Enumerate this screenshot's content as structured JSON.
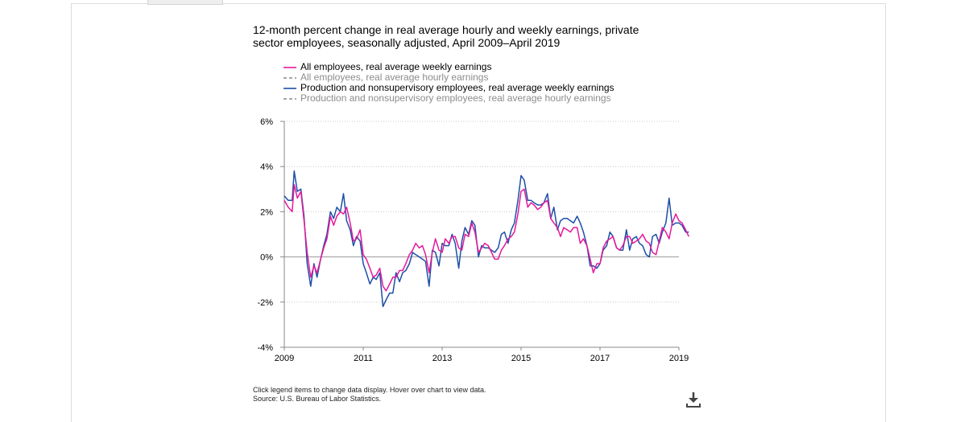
{
  "chart_data": {
    "type": "line",
    "title": "12-month percent change in real average hourly and weekly earnings, private sector employees, seasonally adjusted, April 2009–April 2019",
    "title_lines": [
      "12-month percent change in real average hourly and weekly earnings, private",
      "sector employees, seasonally adjusted, April 2009–April 2019"
    ],
    "xlabel": "",
    "ylabel": "",
    "xlim": [
      2009.0,
      2019.0
    ],
    "ylim": [
      -4,
      6
    ],
    "x_ticks": [
      "2009",
      "2011",
      "2013",
      "2015",
      "2017",
      "2019"
    ],
    "y_ticks": [
      "6%",
      "4%",
      "2%",
      "0%",
      "-2%",
      "-4%"
    ],
    "grid": "horizontal-dotted",
    "legend_position": "top-left",
    "series": [
      {
        "name": "All employees, real average weekly earnings",
        "color": "#e6199b",
        "style": "solid",
        "visible": true,
        "points": [
          [
            2009.0,
            2.5
          ],
          [
            2009.1,
            2.2
          ],
          [
            2009.2,
            2.0
          ],
          [
            2009.25,
            3.2
          ],
          [
            2009.33,
            2.6
          ],
          [
            2009.42,
            2.9
          ],
          [
            2009.5,
            1.6
          ],
          [
            2009.58,
            0.2
          ],
          [
            2009.67,
            -0.9
          ],
          [
            2009.75,
            -0.4
          ],
          [
            2009.83,
            -0.7
          ],
          [
            2009.92,
            -0.1
          ],
          [
            2010.0,
            0.4
          ],
          [
            2010.08,
            0.8
          ],
          [
            2010.17,
            1.8
          ],
          [
            2010.25,
            1.4
          ],
          [
            2010.33,
            1.8
          ],
          [
            2010.42,
            2.0
          ],
          [
            2010.5,
            1.9
          ],
          [
            2010.58,
            2.2
          ],
          [
            2010.67,
            1.5
          ],
          [
            2010.75,
            0.7
          ],
          [
            2010.83,
            0.8
          ],
          [
            2010.92,
            1.2
          ],
          [
            2011.0,
            0.1
          ],
          [
            2011.08,
            -0.1
          ],
          [
            2011.17,
            -0.5
          ],
          [
            2011.25,
            -0.9
          ],
          [
            2011.33,
            -0.8
          ],
          [
            2011.42,
            -0.5
          ],
          [
            2011.5,
            -1.3
          ],
          [
            2011.58,
            -1.5
          ],
          [
            2011.67,
            -1.2
          ],
          [
            2011.75,
            -0.9
          ],
          [
            2011.83,
            -0.9
          ],
          [
            2011.92,
            -0.6
          ],
          [
            2012.0,
            -0.6
          ],
          [
            2012.08,
            -0.3
          ],
          [
            2012.17,
            0.1
          ],
          [
            2012.25,
            0.3
          ],
          [
            2012.33,
            0.6
          ],
          [
            2012.42,
            0.4
          ],
          [
            2012.5,
            0.5
          ],
          [
            2012.58,
            0.1
          ],
          [
            2012.67,
            -0.7
          ],
          [
            2012.75,
            0.2
          ],
          [
            2012.83,
            0.8
          ],
          [
            2012.92,
            0.3
          ],
          [
            2013.0,
            0.2
          ],
          [
            2013.08,
            0.8
          ],
          [
            2013.17,
            0.6
          ],
          [
            2013.25,
            0.9
          ],
          [
            2013.33,
            0.9
          ],
          [
            2013.42,
            0.4
          ],
          [
            2013.5,
            0.3
          ],
          [
            2013.58,
            1.0
          ],
          [
            2013.67,
            0.9
          ],
          [
            2013.75,
            1.5
          ],
          [
            2013.83,
            1.1
          ],
          [
            2013.92,
            0.2
          ],
          [
            2014.0,
            0.4
          ],
          [
            2014.08,
            0.6
          ],
          [
            2014.17,
            0.5
          ],
          [
            2014.25,
            0.2
          ],
          [
            2014.33,
            -0.1
          ],
          [
            2014.42,
            -0.1
          ],
          [
            2014.5,
            0.3
          ],
          [
            2014.58,
            0.5
          ],
          [
            2014.67,
            0.8
          ],
          [
            2014.75,
            0.9
          ],
          [
            2014.83,
            1.1
          ],
          [
            2014.92,
            1.9
          ],
          [
            2015.0,
            2.9
          ],
          [
            2015.08,
            3.0
          ],
          [
            2015.17,
            2.2
          ],
          [
            2015.25,
            2.4
          ],
          [
            2015.33,
            2.3
          ],
          [
            2015.42,
            2.1
          ],
          [
            2015.5,
            2.2
          ],
          [
            2015.58,
            2.4
          ],
          [
            2015.67,
            2.5
          ],
          [
            2015.75,
            1.7
          ],
          [
            2015.83,
            1.5
          ],
          [
            2015.92,
            1.3
          ],
          [
            2016.0,
            0.9
          ],
          [
            2016.08,
            1.3
          ],
          [
            2016.17,
            1.2
          ],
          [
            2016.25,
            1.1
          ],
          [
            2016.33,
            1.3
          ],
          [
            2016.42,
            1.3
          ],
          [
            2016.5,
            0.6
          ],
          [
            2016.58,
            0.8
          ],
          [
            2016.67,
            0.5
          ],
          [
            2016.75,
            -0.1
          ],
          [
            2016.83,
            -0.7
          ],
          [
            2016.92,
            -0.3
          ],
          [
            2017.0,
            -0.3
          ],
          [
            2017.08,
            0.4
          ],
          [
            2017.17,
            0.7
          ],
          [
            2017.25,
            0.8
          ],
          [
            2017.33,
            0.9
          ],
          [
            2017.42,
            0.4
          ],
          [
            2017.5,
            0.3
          ],
          [
            2017.58,
            0.5
          ],
          [
            2017.67,
            0.9
          ],
          [
            2017.75,
            0.9
          ],
          [
            2017.83,
            0.6
          ],
          [
            2017.92,
            0.7
          ],
          [
            2018.0,
            0.8
          ],
          [
            2018.08,
            1.0
          ],
          [
            2018.17,
            0.7
          ],
          [
            2018.25,
            0.6
          ],
          [
            2018.33,
            0.2
          ],
          [
            2018.42,
            0.1
          ],
          [
            2018.5,
            0.7
          ],
          [
            2018.58,
            1.3
          ],
          [
            2018.67,
            1.1
          ],
          [
            2018.75,
            0.8
          ],
          [
            2018.83,
            1.5
          ],
          [
            2018.92,
            1.9
          ],
          [
            2019.0,
            1.6
          ],
          [
            2019.08,
            1.5
          ],
          [
            2019.17,
            1.2
          ],
          [
            2019.25,
            0.9
          ]
        ]
      },
      {
        "name": "All employees, real average hourly earnings",
        "color": "#8c8c8c",
        "style": "dashed",
        "visible": false,
        "points": []
      },
      {
        "name": "Production and nonsupervisory employees, real average weekly earnings",
        "color": "#1d4fa8",
        "style": "solid",
        "visible": true,
        "points": [
          [
            2009.0,
            2.7
          ],
          [
            2009.1,
            2.5
          ],
          [
            2009.2,
            2.5
          ],
          [
            2009.25,
            3.8
          ],
          [
            2009.33,
            2.9
          ],
          [
            2009.42,
            3.0
          ],
          [
            2009.5,
            1.8
          ],
          [
            2009.58,
            -0.3
          ],
          [
            2009.67,
            -1.3
          ],
          [
            2009.75,
            -0.3
          ],
          [
            2009.83,
            -0.9
          ],
          [
            2009.92,
            -0.1
          ],
          [
            2010.0,
            0.5
          ],
          [
            2010.08,
            1.0
          ],
          [
            2010.17,
            2.0
          ],
          [
            2010.25,
            1.7
          ],
          [
            2010.33,
            2.2
          ],
          [
            2010.42,
            2.0
          ],
          [
            2010.5,
            2.8
          ],
          [
            2010.58,
            1.6
          ],
          [
            2010.67,
            1.2
          ],
          [
            2010.75,
            0.5
          ],
          [
            2010.83,
            0.9
          ],
          [
            2010.92,
            0.7
          ],
          [
            2011.0,
            -0.3
          ],
          [
            2011.08,
            -0.7
          ],
          [
            2011.17,
            -1.2
          ],
          [
            2011.25,
            -0.9
          ],
          [
            2011.33,
            -1.0
          ],
          [
            2011.42,
            -0.7
          ],
          [
            2011.5,
            -2.2
          ],
          [
            2011.58,
            -1.9
          ],
          [
            2011.67,
            -1.6
          ],
          [
            2011.75,
            -1.6
          ],
          [
            2011.83,
            -0.7
          ],
          [
            2011.92,
            -1.1
          ],
          [
            2012.0,
            -0.7
          ],
          [
            2012.08,
            -0.6
          ],
          [
            2012.17,
            -0.3
          ],
          [
            2012.25,
            0.2
          ],
          [
            2012.33,
            0.1
          ],
          [
            2012.42,
            0.0
          ],
          [
            2012.5,
            -0.1
          ],
          [
            2012.58,
            -0.2
          ],
          [
            2012.67,
            -1.3
          ],
          [
            2012.75,
            0.3
          ],
          [
            2012.83,
            0.2
          ],
          [
            2012.92,
            -0.4
          ],
          [
            2013.0,
            0.6
          ],
          [
            2013.08,
            0.5
          ],
          [
            2013.17,
            0.5
          ],
          [
            2013.25,
            1.0
          ],
          [
            2013.33,
            0.6
          ],
          [
            2013.42,
            -0.5
          ],
          [
            2013.5,
            0.7
          ],
          [
            2013.58,
            1.3
          ],
          [
            2013.67,
            1.0
          ],
          [
            2013.75,
            1.6
          ],
          [
            2013.83,
            1.4
          ],
          [
            2013.92,
            0.0
          ],
          [
            2014.0,
            0.5
          ],
          [
            2014.08,
            0.4
          ],
          [
            2014.17,
            0.4
          ],
          [
            2014.25,
            0.3
          ],
          [
            2014.33,
            0.2
          ],
          [
            2014.42,
            0.4
          ],
          [
            2014.5,
            1.0
          ],
          [
            2014.58,
            1.1
          ],
          [
            2014.67,
            0.6
          ],
          [
            2014.75,
            1.2
          ],
          [
            2014.83,
            1.5
          ],
          [
            2014.92,
            2.5
          ],
          [
            2015.0,
            3.6
          ],
          [
            2015.08,
            3.4
          ],
          [
            2015.17,
            2.5
          ],
          [
            2015.25,
            2.5
          ],
          [
            2015.33,
            2.4
          ],
          [
            2015.42,
            2.3
          ],
          [
            2015.5,
            2.3
          ],
          [
            2015.58,
            2.4
          ],
          [
            2015.67,
            2.8
          ],
          [
            2015.75,
            1.7
          ],
          [
            2015.83,
            2.2
          ],
          [
            2015.92,
            1.2
          ],
          [
            2016.0,
            1.6
          ],
          [
            2016.08,
            1.7
          ],
          [
            2016.17,
            1.7
          ],
          [
            2016.25,
            1.6
          ],
          [
            2016.33,
            1.5
          ],
          [
            2016.42,
            1.8
          ],
          [
            2016.5,
            1.5
          ],
          [
            2016.58,
            1.1
          ],
          [
            2016.67,
            0.5
          ],
          [
            2016.75,
            -0.4
          ],
          [
            2016.83,
            -0.4
          ],
          [
            2016.92,
            -0.5
          ],
          [
            2017.0,
            -0.3
          ],
          [
            2017.08,
            0.3
          ],
          [
            2017.17,
            0.5
          ],
          [
            2017.25,
            1.1
          ],
          [
            2017.33,
            0.9
          ],
          [
            2017.42,
            0.4
          ],
          [
            2017.5,
            0.3
          ],
          [
            2017.58,
            0.3
          ],
          [
            2017.67,
            1.2
          ],
          [
            2017.75,
            0.3
          ],
          [
            2017.83,
            0.8
          ],
          [
            2017.92,
            0.9
          ],
          [
            2018.0,
            0.6
          ],
          [
            2018.08,
            0.5
          ],
          [
            2018.17,
            0.1
          ],
          [
            2018.25,
            0.0
          ],
          [
            2018.33,
            0.9
          ],
          [
            2018.42,
            1.0
          ],
          [
            2018.5,
            0.6
          ],
          [
            2018.58,
            1.1
          ],
          [
            2018.67,
            1.5
          ],
          [
            2018.75,
            2.6
          ],
          [
            2018.83,
            1.4
          ],
          [
            2018.92,
            1.5
          ],
          [
            2019.0,
            1.5
          ],
          [
            2019.08,
            1.4
          ],
          [
            2019.17,
            1.1
          ],
          [
            2019.25,
            1.1
          ]
        ]
      },
      {
        "name": "Production and nonsupervisory employees, real average hourly earnings",
        "color": "#8c8c8c",
        "style": "dashed",
        "visible": false,
        "points": []
      }
    ]
  },
  "footer": {
    "note": "Click legend items to change data display. Hover over chart to view data.",
    "source": "Source: U.S. Bureau of Labor Statistics."
  },
  "icons": {
    "download": "download-icon"
  }
}
